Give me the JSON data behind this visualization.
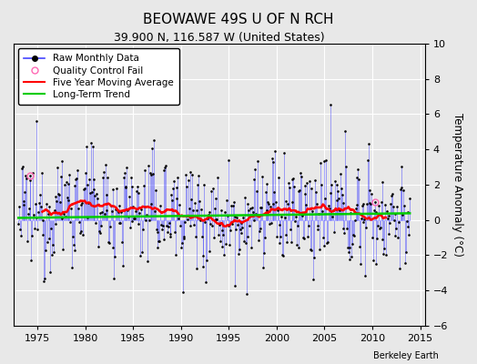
{
  "title": "BEOWAWE 49S U OF N RCH",
  "subtitle": "39.900 N, 116.587 W (United States)",
  "ylabel": "Temperature Anomaly (°C)",
  "xlabel_credit": "Berkeley Earth",
  "xlim": [
    1972.5,
    2015.5
  ],
  "ylim": [
    -6,
    10
  ],
  "yticks": [
    -6,
    -4,
    -2,
    0,
    2,
    4,
    6,
    8,
    10
  ],
  "xticks": [
    1975,
    1980,
    1985,
    1990,
    1995,
    2000,
    2005,
    2010,
    2015
  ],
  "start_year": 1973,
  "end_year": 2013,
  "seed": 12345,
  "raw_color": "#4444FF",
  "raw_line_alpha": 0.55,
  "moving_avg_color": "#FF0000",
  "trend_color": "#00CC00",
  "dot_color": "#000000",
  "qc_color": "#FF69B4",
  "background_color": "#E8E8E8",
  "plot_bg_color": "#E8E8E8",
  "title_fontsize": 11,
  "subtitle_fontsize": 9,
  "tick_fontsize": 8,
  "ylabel_fontsize": 8.5,
  "legend_fontsize": 7.5,
  "qc_indices": [
    14,
    447
  ]
}
